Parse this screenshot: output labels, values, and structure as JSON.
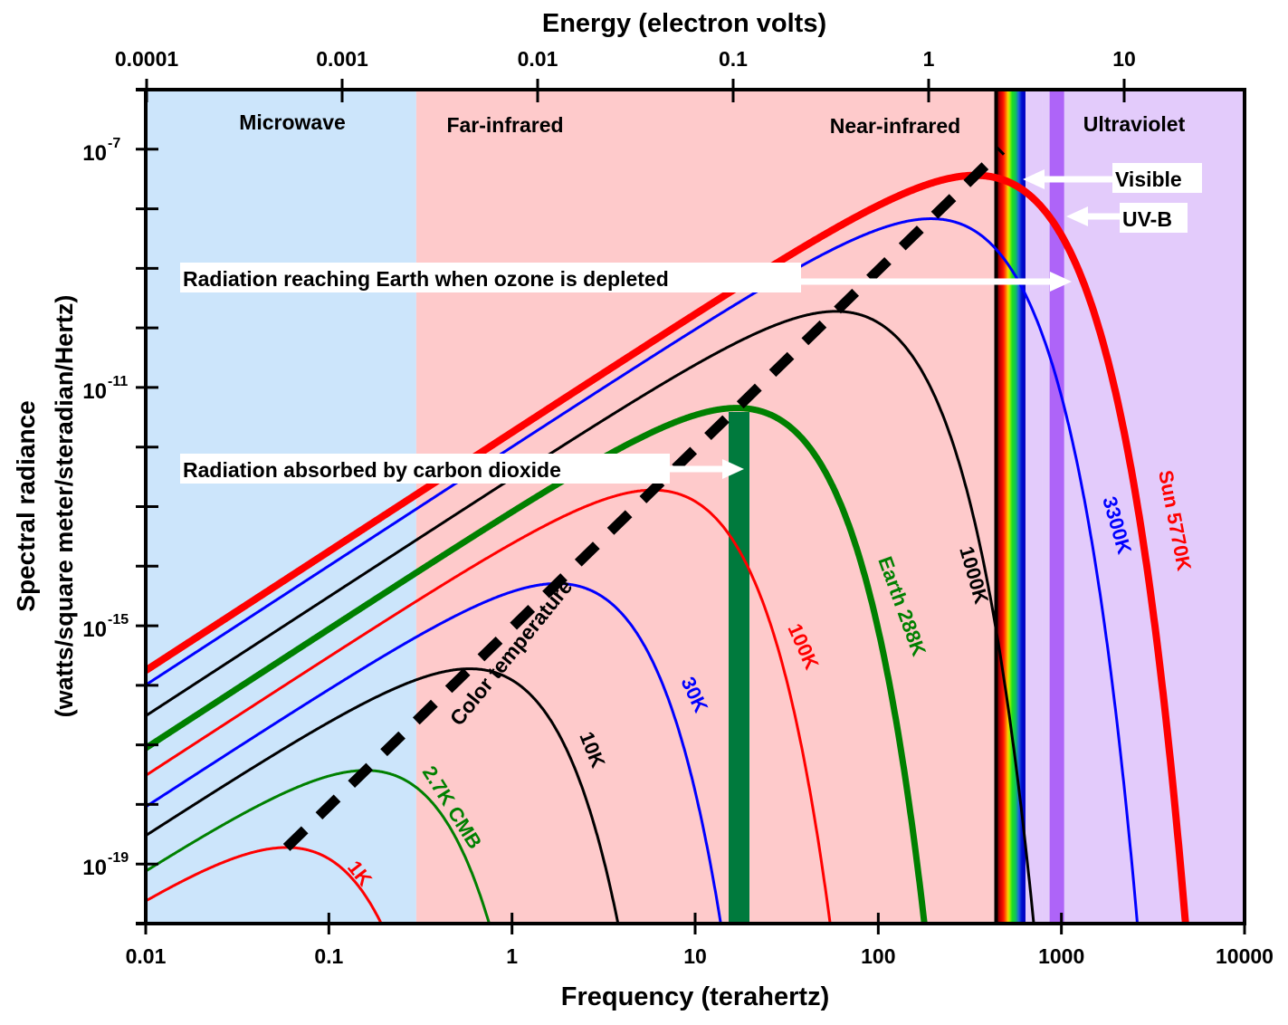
{
  "chart_data": {
    "type": "line",
    "title": "",
    "xlabel": "Frequency (terahertz)",
    "ylabel": "Spectral radiance",
    "ylabel_units": "(watts/square meter/steradian/Hertz)",
    "x2label": "Energy (electron volts)",
    "xscale": "log",
    "yscale": "log",
    "xlim": [
      0.01,
      10000
    ],
    "ylim": [
      1e-20,
      1e-06
    ],
    "x_ticks": [
      "0.01",
      "0.1",
      "1",
      "10",
      "100",
      "1000",
      "10000"
    ],
    "x_tick_values": [
      0.01,
      0.1,
      1,
      10,
      100,
      1000,
      10000
    ],
    "x2_ticks": [
      "0.0001",
      "0.001",
      "0.01",
      "0.1",
      "1",
      "10"
    ],
    "x2_tick_values": [
      0.0001,
      0.001,
      0.01,
      0.1,
      1,
      10
    ],
    "y_ticks": [
      {
        "base": "10",
        "exp": "-7",
        "value": 1e-07
      },
      {
        "base": "10",
        "exp": "-11",
        "value": 1e-11
      },
      {
        "base": "10",
        "exp": "-15",
        "value": 1e-15
      },
      {
        "base": "10",
        "exp": "-19",
        "value": 1e-19
      }
    ],
    "y_minor_tick_values": [
      1e-06,
      1e-08,
      1e-09,
      1e-10,
      1e-12,
      1e-13,
      1e-14,
      1e-16,
      1e-17,
      1e-18,
      1e-20
    ],
    "regions": [
      {
        "name": "Microwave",
        "from": 0.01,
        "to": 0.3,
        "color": "#cce5fb"
      },
      {
        "name": "Far-infrared",
        "from": 0.3,
        "to": 10,
        "color": "#fecacb"
      },
      {
        "name": "Near-infrared",
        "from": 10,
        "to": 430,
        "color": "#fecacb"
      },
      {
        "name": "Ultraviolet",
        "from": 790,
        "to": 10000,
        "color": "#e3cbfb"
      }
    ],
    "bands": [
      {
        "name": "Visible",
        "from": 430,
        "to": 790
      },
      {
        "name": "UV-B",
        "from": 1000,
        "to": 1200,
        "color": "#ae64f8"
      },
      {
        "name": "CO2 absorption",
        "from": 15,
        "to": 20,
        "color": "#007a3d"
      }
    ],
    "series": [
      {
        "name": "1K",
        "temperature": 1,
        "color": "#ff0000",
        "width": 3
      },
      {
        "name": "2.7K CMB",
        "temperature": 2.7,
        "color": "#008000",
        "width": 3
      },
      {
        "name": "10K",
        "temperature": 10,
        "color": "#000000",
        "width": 3
      },
      {
        "name": "30K",
        "temperature": 30,
        "color": "#0000ff",
        "width": 3
      },
      {
        "name": "100K",
        "temperature": 100,
        "color": "#ff0000",
        "width": 3
      },
      {
        "name": "Earth 288K",
        "temperature": 288,
        "color": "#008000",
        "width": 7
      },
      {
        "name": "1000K",
        "temperature": 1000,
        "color": "#000000",
        "width": 3
      },
      {
        "name": "3300K",
        "temperature": 3300,
        "color": "#0000ff",
        "width": 3
      },
      {
        "name": "Sun 5770K",
        "temperature": 5770,
        "color": "#ff0000",
        "width": 8
      }
    ],
    "color_temperature_line": {
      "label": "Color temperature",
      "from_temperature": 1,
      "to_temperature": 8000
    },
    "annotations": {
      "visible": "Visible",
      "uvb": "UV-B",
      "ozone": "Radiation reaching Earth when ozone is depleted",
      "co2": "Radiation absorbed by carbon dioxide"
    },
    "grid": false
  }
}
